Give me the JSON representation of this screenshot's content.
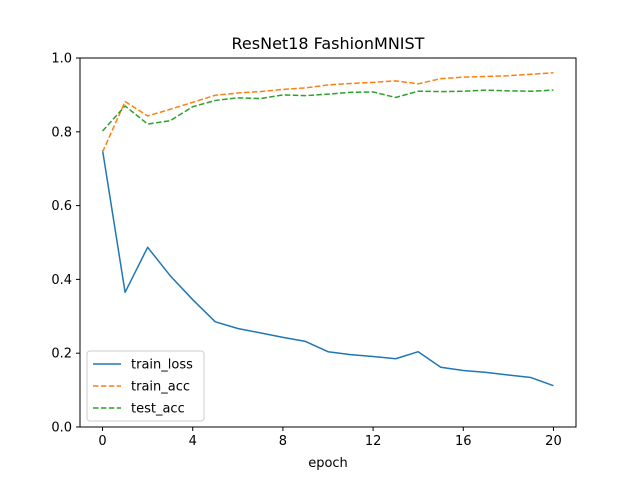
{
  "chart_data": {
    "type": "line",
    "title": "ResNet18 FashionMNIST",
    "xlabel": "epoch",
    "ylabel": "",
    "xlim": [
      -1,
      21
    ],
    "ylim": [
      0,
      1.0
    ],
    "xticks": [
      0,
      4,
      8,
      12,
      16,
      20
    ],
    "xtick_labels": [
      "0",
      "4",
      "8",
      "12",
      "16",
      "20"
    ],
    "yticks": [
      0.0,
      0.2,
      0.4,
      0.6,
      0.8,
      1.0
    ],
    "ytick_labels": [
      "0.0",
      "0.2",
      "0.4",
      "0.6",
      "0.8",
      "1.0"
    ],
    "grid": false,
    "legend_position": "lower-left",
    "x": [
      0,
      1,
      2,
      3,
      4,
      5,
      6,
      7,
      8,
      9,
      10,
      11,
      12,
      13,
      14,
      15,
      16,
      17,
      18,
      19,
      20
    ],
    "series": [
      {
        "name": "train_loss",
        "color": "#1f77b4",
        "dashed": false,
        "values": [
          0.75,
          0.365,
          0.487,
          0.41,
          0.345,
          0.285,
          0.267,
          0.255,
          0.243,
          0.232,
          0.204,
          0.196,
          0.191,
          0.185,
          0.204,
          0.162,
          0.153,
          0.148,
          0.141,
          0.134,
          0.112
        ]
      },
      {
        "name": "train_acc",
        "color": "#ff7f0e",
        "dashed": true,
        "values": [
          0.745,
          0.882,
          0.843,
          0.861,
          0.88,
          0.899,
          0.905,
          0.909,
          0.915,
          0.919,
          0.927,
          0.931,
          0.934,
          0.938,
          0.93,
          0.944,
          0.948,
          0.95,
          0.952,
          0.956,
          0.96
        ]
      },
      {
        "name": "test_acc",
        "color": "#2ca02c",
        "dashed": true,
        "values": [
          0.802,
          0.87,
          0.821,
          0.83,
          0.868,
          0.885,
          0.892,
          0.89,
          0.9,
          0.898,
          0.902,
          0.907,
          0.908,
          0.893,
          0.91,
          0.909,
          0.91,
          0.913,
          0.911,
          0.91,
          0.913
        ]
      }
    ]
  }
}
